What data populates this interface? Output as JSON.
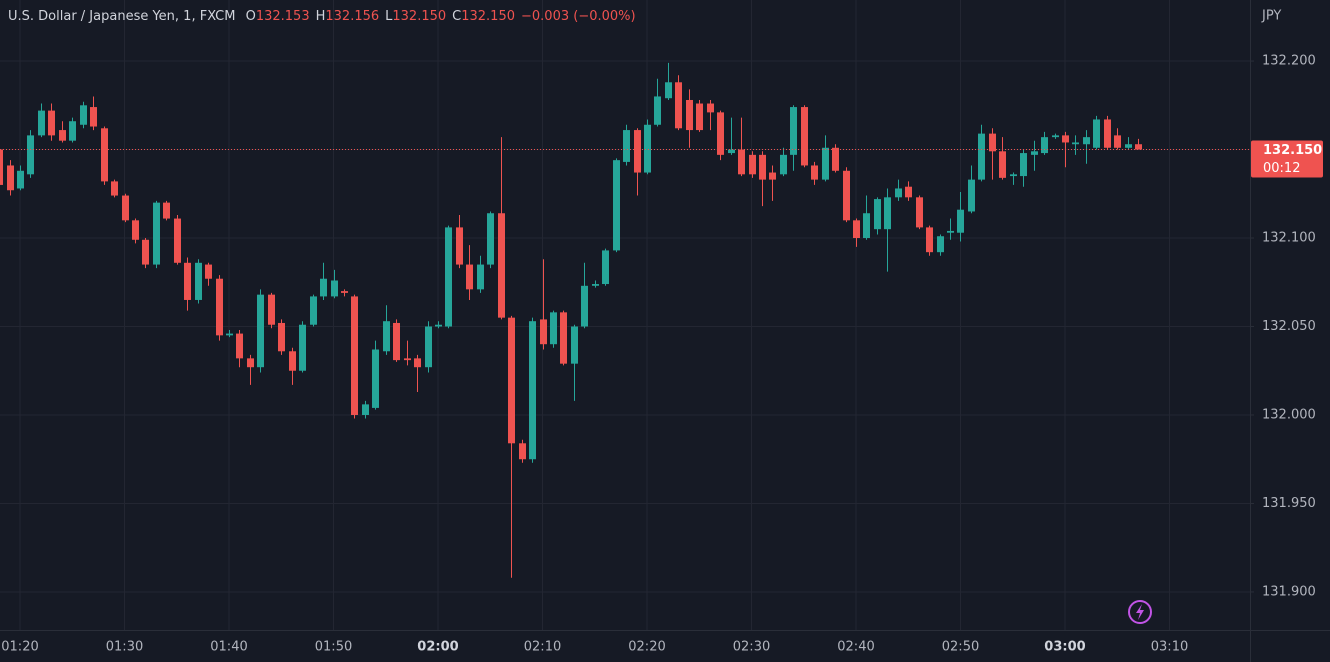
{
  "chart_data": {
    "type": "candlestick",
    "header": {
      "symbol": "U.S. Dollar / Japanese Yen, 1, FXCM",
      "ohlc": [
        {
          "key": "O",
          "value": "132.153"
        },
        {
          "key": "H",
          "value": "132.156"
        },
        {
          "key": "L",
          "value": "132.150"
        },
        {
          "key": "C",
          "value": "132.150"
        }
      ],
      "change": "−0.003 (−0.00%)"
    },
    "currency": "JPY",
    "up_color": "#26a69a",
    "down_color": "#ef5350",
    "x": [
      "01:18",
      "01:19",
      "01:20",
      "01:21",
      "01:22",
      "01:23",
      "01:24",
      "01:25",
      "01:26",
      "01:27",
      "01:28",
      "01:29",
      "01:30",
      "01:31",
      "01:32",
      "01:33",
      "01:34",
      "01:35",
      "01:36",
      "01:37",
      "01:38",
      "01:39",
      "01:40",
      "01:41",
      "01:42",
      "01:43",
      "01:44",
      "01:45",
      "01:46",
      "01:47",
      "01:48",
      "01:49",
      "01:50",
      "01:51",
      "01:52",
      "01:53",
      "01:54",
      "01:55",
      "01:56",
      "01:57",
      "01:58",
      "01:59",
      "02:00",
      "02:01",
      "02:02",
      "02:03",
      "02:04",
      "02:05",
      "02:06",
      "02:07",
      "02:08",
      "02:09",
      "02:10",
      "02:11",
      "02:12",
      "02:13",
      "02:14",
      "02:15",
      "02:16",
      "02:17",
      "02:18",
      "02:19",
      "02:20",
      "02:21",
      "02:22",
      "02:23",
      "02:24",
      "02:25",
      "02:26",
      "02:27",
      "02:28",
      "02:29",
      "02:30",
      "02:31",
      "02:32",
      "02:33",
      "02:34",
      "02:35",
      "02:36",
      "02:37",
      "02:38",
      "02:39",
      "02:40",
      "02:41",
      "02:42",
      "02:43",
      "02:44",
      "02:45",
      "02:46",
      "02:47",
      "02:48",
      "02:49",
      "02:50",
      "02:51",
      "02:52",
      "02:53",
      "02:54",
      "02:55",
      "02:56",
      "02:57",
      "02:58",
      "02:59",
      "03:00",
      "03:01",
      "03:02",
      "03:03",
      "03:04",
      "03:05",
      "03:06",
      "03:07"
    ],
    "open": [
      132.15,
      132.141,
      132.128,
      132.136,
      132.158,
      132.172,
      132.161,
      132.155,
      132.164,
      132.174,
      132.162,
      132.132,
      132.124,
      132.11,
      132.099,
      132.085,
      132.12,
      132.111,
      132.086,
      132.065,
      132.085,
      132.077,
      132.045,
      132.046,
      132.032,
      132.027,
      132.068,
      132.052,
      132.036,
      132.025,
      132.051,
      132.067,
      132.067,
      132.07,
      132.067,
      132.0,
      132.004,
      132.036,
      132.052,
      132.032,
      132.032,
      132.027,
      132.05,
      132.05,
      132.106,
      132.085,
      132.071,
      132.085,
      132.114,
      132.055,
      131.984,
      131.975,
      132.054,
      132.04,
      132.058,
      132.029,
      132.05,
      132.073,
      132.074,
      132.093,
      132.143,
      132.161,
      132.137,
      132.164,
      132.179,
      132.188,
      132.178,
      132.176,
      132.176,
      132.171,
      132.148,
      132.15,
      132.147,
      132.147,
      132.137,
      132.136,
      132.147,
      132.174,
      132.141,
      132.133,
      132.151,
      132.138,
      132.11,
      132.1,
      132.105,
      132.105,
      132.123,
      132.129,
      132.123,
      132.106,
      132.092,
      132.103,
      132.103,
      132.115,
      132.133,
      132.159,
      132.149,
      132.135,
      132.135,
      132.147,
      132.148,
      132.157,
      132.158,
      132.153,
      132.153,
      132.151,
      132.167,
      132.158,
      132.151,
      132.153
    ],
    "high": [
      132.168,
      132.144,
      132.141,
      132.161,
      132.176,
      132.176,
      132.166,
      132.168,
      132.177,
      132.18,
      132.163,
      132.133,
      132.125,
      132.111,
      132.1,
      132.121,
      132.121,
      132.113,
      132.089,
      132.088,
      132.086,
      132.079,
      132.048,
      132.048,
      132.034,
      132.071,
      132.069,
      132.054,
      132.038,
      132.053,
      132.068,
      132.086,
      132.082,
      132.071,
      132.068,
      132.008,
      132.042,
      132.062,
      132.054,
      132.042,
      132.034,
      132.053,
      132.053,
      132.107,
      132.113,
      132.096,
      132.09,
      132.115,
      132.157,
      132.056,
      131.986,
      132.055,
      132.088,
      132.059,
      132.059,
      132.051,
      132.086,
      132.076,
      132.094,
      132.145,
      132.164,
      132.162,
      132.167,
      132.19,
      132.199,
      132.192,
      132.184,
      132.178,
      132.178,
      132.172,
      132.168,
      132.168,
      132.149,
      132.149,
      132.141,
      132.151,
      132.175,
      132.175,
      132.143,
      132.158,
      132.153,
      132.14,
      132.111,
      132.124,
      132.123,
      132.128,
      132.133,
      132.132,
      132.124,
      132.107,
      132.102,
      132.111,
      132.126,
      132.141,
      132.164,
      132.162,
      132.157,
      132.137,
      132.15,
      132.155,
      132.16,
      132.159,
      132.16,
      132.158,
      132.161,
      132.169,
      132.169,
      132.162,
      132.157,
      132.156
    ],
    "low": [
      132.127,
      132.124,
      132.127,
      132.134,
      132.157,
      132.155,
      132.154,
      132.154,
      132.162,
      132.161,
      132.13,
      132.123,
      132.109,
      132.097,
      132.083,
      132.083,
      132.11,
      132.085,
      132.059,
      132.063,
      132.073,
      132.042,
      132.044,
      132.027,
      132.017,
      132.024,
      132.049,
      132.034,
      132.017,
      132.024,
      132.05,
      132.065,
      132.066,
      132.067,
      131.998,
      131.998,
      132.003,
      132.034,
      132.03,
      132.028,
      132.013,
      132.024,
      132.049,
      132.049,
      132.083,
      132.065,
      132.069,
      132.083,
      132.054,
      131.908,
      131.973,
      131.973,
      132.037,
      132.038,
      132.028,
      132.008,
      132.049,
      132.072,
      132.073,
      132.092,
      132.141,
      132.124,
      132.136,
      132.163,
      132.178,
      132.161,
      132.151,
      132.16,
      132.161,
      132.144,
      132.147,
      132.135,
      132.134,
      132.118,
      132.121,
      132.135,
      132.138,
      132.14,
      132.13,
      132.132,
      132.137,
      132.109,
      132.095,
      132.099,
      132.102,
      132.081,
      132.121,
      132.121,
      132.105,
      132.09,
      132.09,
      132.099,
      132.098,
      132.114,
      132.132,
      132.133,
      132.133,
      132.13,
      132.129,
      132.138,
      132.147,
      132.156,
      132.14,
      132.147,
      132.142,
      132.15,
      132.15,
      132.15,
      132.15,
      132.15
    ],
    "close": [
      132.13,
      132.127,
      132.138,
      132.158,
      132.172,
      132.158,
      132.155,
      132.166,
      132.175,
      132.163,
      132.132,
      132.124,
      132.11,
      132.099,
      132.085,
      132.12,
      132.111,
      132.086,
      132.065,
      132.086,
      132.077,
      132.045,
      132.046,
      132.032,
      132.027,
      132.068,
      132.051,
      132.036,
      132.025,
      132.051,
      132.067,
      132.077,
      132.076,
      132.069,
      132.0,
      132.006,
      132.037,
      132.053,
      132.031,
      132.031,
      132.027,
      132.05,
      132.051,
      132.106,
      132.085,
      132.071,
      132.085,
      132.114,
      132.055,
      131.984,
      131.975,
      132.053,
      132.04,
      132.058,
      132.029,
      132.05,
      132.073,
      132.074,
      132.093,
      132.144,
      132.161,
      132.137,
      132.164,
      132.18,
      132.188,
      132.162,
      132.161,
      132.161,
      132.171,
      132.147,
      132.15,
      132.136,
      132.136,
      132.133,
      132.133,
      132.147,
      132.174,
      132.141,
      132.133,
      132.151,
      132.138,
      132.11,
      132.1,
      132.114,
      132.122,
      132.123,
      132.128,
      132.123,
      132.106,
      132.092,
      132.101,
      132.104,
      132.116,
      132.133,
      132.159,
      132.149,
      132.134,
      132.136,
      132.148,
      132.149,
      132.157,
      132.158,
      132.154,
      132.154,
      132.157,
      132.167,
      132.151,
      132.151,
      132.153,
      132.15
    ],
    "ylim": [
      131.8785,
      132.2345
    ],
    "yticks": [
      {
        "value": 132.2,
        "label": "132.200"
      },
      {
        "value": 132.15,
        "label": "132.150"
      },
      {
        "value": 132.1,
        "label": "132.100"
      },
      {
        "value": 132.05,
        "label": "132.050"
      },
      {
        "value": 132.0,
        "label": "132.000"
      },
      {
        "value": 131.95,
        "label": "131.950"
      },
      {
        "value": 131.9,
        "label": "131.900"
      }
    ],
    "xticks": [
      "01:20",
      "01:30",
      "01:40",
      "01:50",
      "02:00",
      "02:10",
      "02:20",
      "02:30",
      "02:40",
      "02:50",
      "03:00",
      "03:10"
    ],
    "last_price": {
      "value": 132.15,
      "label": "132.150"
    },
    "countdown": "00:12",
    "grid": true
  }
}
